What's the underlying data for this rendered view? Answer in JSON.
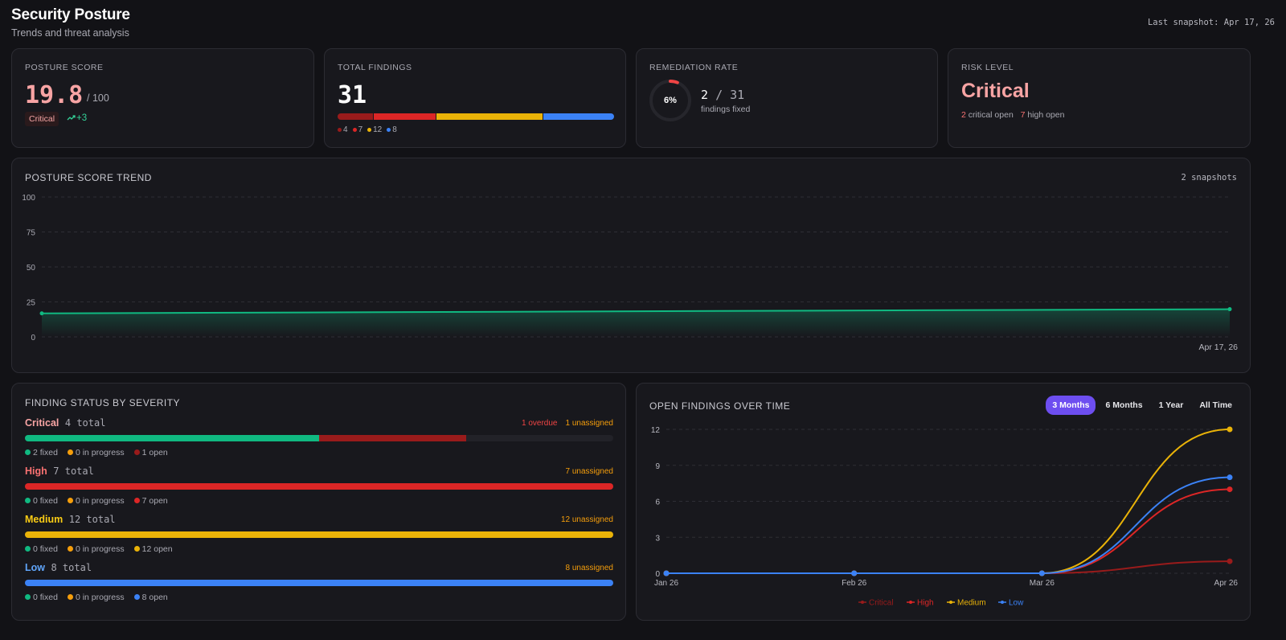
{
  "header": {
    "title": "Security Posture",
    "subtitle": "Trends and threat analysis",
    "last_snapshot": "Last snapshot: Apr 17, 26"
  },
  "posture": {
    "label": "POSTURE SCORE",
    "value": "19.8",
    "max": "/ 100",
    "badge": "Critical",
    "trend": "+3",
    "trend_icon": "trending-up-icon"
  },
  "total": {
    "label": "TOTAL FINDINGS",
    "value": "31",
    "segments": [
      {
        "count": "4",
        "color": "#991b1b"
      },
      {
        "count": "7",
        "color": "#dc2626"
      },
      {
        "count": "12",
        "color": "#eab308"
      },
      {
        "count": "8",
        "color": "#3b82f6"
      }
    ]
  },
  "remediation": {
    "label": "REMEDIATION RATE",
    "percent": "6%",
    "percent_value": 6,
    "fixed": "2",
    "total": "/ 31",
    "sub": "findings fixed"
  },
  "risk": {
    "label": "RISK LEVEL",
    "value": "Critical",
    "critical_count": "2",
    "critical_text": "critical open",
    "high_count": "7",
    "high_text": "high open"
  },
  "trend_chart": {
    "title": "POSTURE SCORE TREND",
    "snapshots": "2 snapshots",
    "x_end_label": "Apr 17, 26"
  },
  "status": {
    "title": "FINDING STATUS BY SEVERITY",
    "rows": [
      {
        "name": "Critical",
        "total": "4 total",
        "color": "#f8a4a4",
        "overdue": "1 overdue",
        "unassigned": "1 unassigned",
        "fixed": "2 fixed",
        "in_progress": "0 in progress",
        "open": "1 open",
        "open_color": "#991b1b",
        "fixed_frac": 0.5,
        "open_frac": 0.25
      },
      {
        "name": "High",
        "total": "7 total",
        "color": "#f87171",
        "overdue": "",
        "unassigned": "7 unassigned",
        "fixed": "0 fixed",
        "in_progress": "0 in progress",
        "open": "7 open",
        "open_color": "#dc2626",
        "fixed_frac": 0,
        "open_frac": 1
      },
      {
        "name": "Medium",
        "total": "12 total",
        "color": "#facc15",
        "overdue": "",
        "unassigned": "12 unassigned",
        "fixed": "0 fixed",
        "in_progress": "0 in progress",
        "open": "12 open",
        "open_color": "#eab308",
        "fixed_frac": 0,
        "open_frac": 1
      },
      {
        "name": "Low",
        "total": "8 total",
        "color": "#60a5fa",
        "overdue": "",
        "unassigned": "8 unassigned",
        "fixed": "0 fixed",
        "in_progress": "0 in progress",
        "open": "8 open",
        "open_color": "#3b82f6",
        "fixed_frac": 0,
        "open_frac": 1
      }
    ]
  },
  "open_findings": {
    "title": "OPEN FINDINGS OVER TIME",
    "tabs": [
      "3 Months",
      "6 Months",
      "1 Year",
      "All Time"
    ],
    "active_tab": "3 Months"
  },
  "chart_data": [
    {
      "type": "area",
      "title": "POSTURE SCORE TREND",
      "x": [
        "",
        "Apr 17, 26"
      ],
      "series": [
        {
          "values": [
            16.8,
            19.8
          ]
        }
      ],
      "ylim": [
        0,
        100
      ],
      "yticks": [
        0,
        25,
        50,
        75,
        100
      ],
      "grid": true
    },
    {
      "type": "line",
      "title": "OPEN FINDINGS OVER TIME",
      "categories": [
        "Jan 26",
        "Feb 26",
        "Mar 26",
        "Apr 26"
      ],
      "ylim": [
        0,
        12
      ],
      "yticks": [
        0,
        3,
        6,
        9,
        12
      ],
      "grid": true,
      "legend": "bottom",
      "series": [
        {
          "name": "Critical",
          "color": "#991b1b",
          "values": [
            0,
            0,
            0,
            1
          ]
        },
        {
          "name": "High",
          "color": "#dc2626",
          "values": [
            0,
            0,
            0,
            7
          ]
        },
        {
          "name": "Medium",
          "color": "#eab308",
          "values": [
            0,
            0,
            0,
            12
          ]
        },
        {
          "name": "Low",
          "color": "#3b82f6",
          "values": [
            0,
            0,
            0,
            8
          ]
        }
      ]
    }
  ]
}
